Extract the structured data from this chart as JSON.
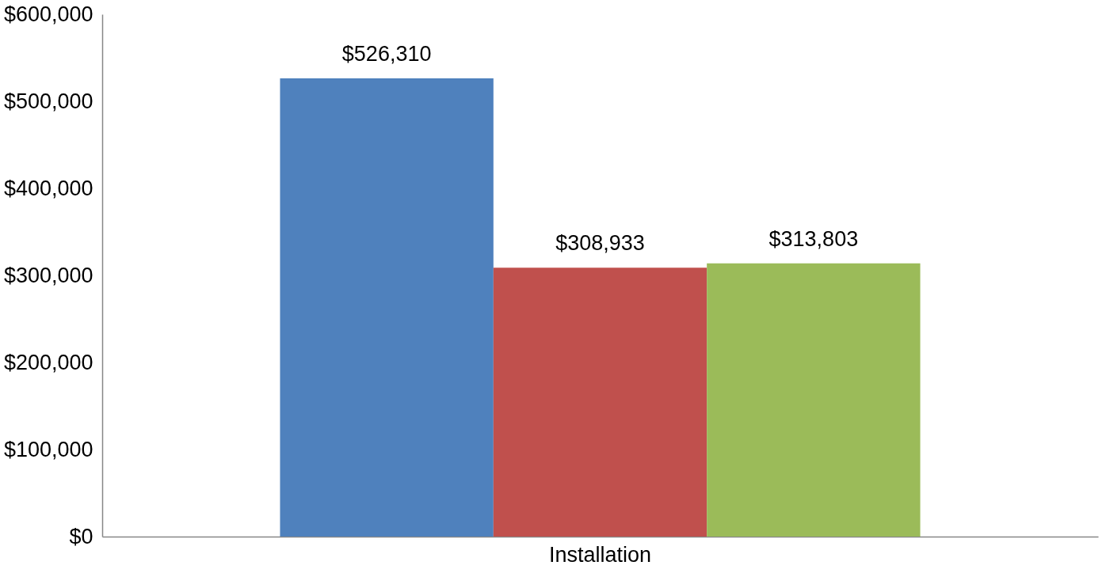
{
  "chart_data": {
    "type": "bar",
    "categories": [
      "Installation"
    ],
    "series": [
      {
        "color": "#4f81bd",
        "values": [
          526310
        ],
        "value_labels": [
          "$526,310"
        ]
      },
      {
        "color": "#c0504d",
        "values": [
          308933
        ],
        "value_labels": [
          "$308,933"
        ]
      },
      {
        "color": "#9bbb59",
        "values": [
          313803
        ],
        "value_labels": [
          "$313,803"
        ]
      }
    ],
    "ylim": [
      0,
      600000
    ],
    "yticks": [
      {
        "value": 0,
        "label": "$0"
      },
      {
        "value": 100000,
        "label": "$100,000"
      },
      {
        "value": 200000,
        "label": "$200,000"
      },
      {
        "value": 300000,
        "label": "$300,000"
      },
      {
        "value": 400000,
        "label": "$400,000"
      },
      {
        "value": 500000,
        "label": "$500,000"
      },
      {
        "value": 600000,
        "label": "$600,000"
      }
    ],
    "grid": false,
    "legend": false
  }
}
